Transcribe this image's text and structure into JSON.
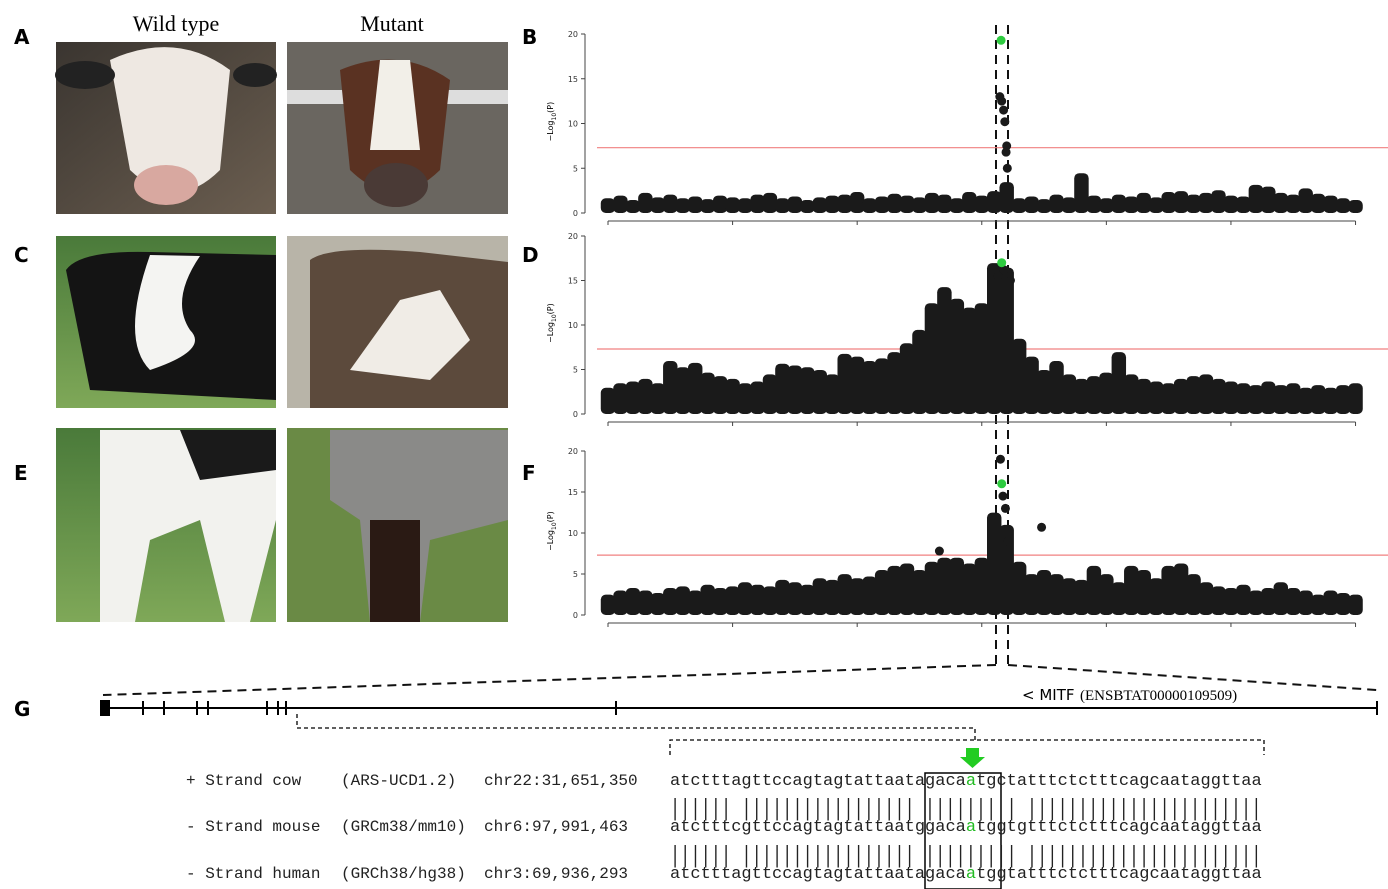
{
  "panel_labels": [
    "A",
    "B",
    "C",
    "D",
    "E",
    "F",
    "G"
  ],
  "photo_headers": [
    "Wild type",
    "Mutant"
  ],
  "chart_data": [
    {
      "type": "manhattan",
      "ylabel": "−Log",
      "ylabel_sub": "10",
      "ylabel_end": "(P)",
      "xlim": [
        0,
        61
      ],
      "xticks": [
        0,
        10,
        20,
        30,
        40,
        50,
        60
      ],
      "ylim": [
        0,
        20
      ],
      "yticks": [
        0,
        5,
        10,
        15,
        20
      ],
      "threshold": 7.3,
      "threshold_color": "#f08080",
      "color": "#1a1a1a",
      "lead_color": "#2ecc40",
      "x": [
        0,
        1,
        2,
        3,
        4,
        5,
        6,
        7,
        8,
        9,
        10,
        11,
        12,
        13,
        14,
        15,
        16,
        17,
        18,
        19,
        20,
        21,
        22,
        23,
        24,
        25,
        26,
        27,
        28,
        29,
        30,
        31,
        32,
        33,
        34,
        35,
        36,
        37,
        38,
        39,
        40,
        41,
        42,
        43,
        44,
        45,
        46,
        47,
        48,
        49,
        50,
        51,
        52,
        53,
        54,
        55,
        56,
        57,
        58,
        59,
        60
      ],
      "values": [
        1.2,
        1.5,
        1.0,
        1.8,
        1.3,
        1.6,
        1.2,
        1.4,
        1.1,
        1.5,
        1.3,
        1.2,
        1.6,
        1.8,
        1.2,
        1.4,
        1.0,
        1.3,
        1.5,
        1.6,
        1.9,
        1.2,
        1.4,
        1.7,
        1.5,
        1.3,
        1.8,
        1.6,
        1.2,
        1.9,
        1.5,
        2.0,
        3.0,
        1.2,
        1.4,
        1.1,
        1.6,
        1.3,
        4.0,
        1.5,
        1.2,
        1.6,
        1.4,
        1.8,
        1.3,
        1.9,
        2.0,
        1.6,
        1.8,
        2.1,
        1.5,
        1.4,
        2.7,
        2.5,
        1.8,
        1.6,
        2.3,
        1.7,
        1.5,
        1.2,
        1.0
      ],
      "peak_x": [
        31.45,
        31.6,
        31.75,
        31.85,
        32.0,
        32.05,
        31.95
      ],
      "peak_values": [
        13,
        12.5,
        11.5,
        10.2,
        7.5,
        5,
        6.8
      ],
      "lead": {
        "x": 31.55,
        "value": 19.3
      }
    },
    {
      "type": "manhattan",
      "ylabel": "−Log",
      "ylabel_sub": "10",
      "ylabel_end": "(P)",
      "xlim": [
        0,
        61
      ],
      "xticks": [
        0,
        10,
        20,
        30,
        40,
        50,
        60
      ],
      "ylim": [
        0,
        20
      ],
      "yticks": [
        0,
        5,
        10,
        15,
        20
      ],
      "threshold": 7.3,
      "threshold_color": "#f08080",
      "color": "#1a1a1a",
      "lead_color": "#2ecc40",
      "x": [
        0,
        1,
        2,
        3,
        4,
        5,
        6,
        7,
        8,
        9,
        10,
        11,
        12,
        13,
        14,
        15,
        16,
        17,
        18,
        19,
        20,
        21,
        22,
        23,
        24,
        25,
        26,
        27,
        28,
        29,
        30,
        31,
        32,
        33,
        34,
        35,
        36,
        37,
        38,
        39,
        40,
        41,
        42,
        43,
        44,
        45,
        46,
        47,
        48,
        49,
        50,
        51,
        52,
        53,
        54,
        55,
        56,
        57,
        58,
        59,
        60
      ],
      "values": [
        2.5,
        3.0,
        3.2,
        3.5,
        3.0,
        5.5,
        4.8,
        5.3,
        4.2,
        3.8,
        3.5,
        3.0,
        3.2,
        4.0,
        5.2,
        5.0,
        4.8,
        4.5,
        4.0,
        6.3,
        6.0,
        5.5,
        5.8,
        6.5,
        7.5,
        9.0,
        12.0,
        13.8,
        12.5,
        11.5,
        12.0,
        16.5,
        16.0,
        8.0,
        6.0,
        4.5,
        5.5,
        4.0,
        3.5,
        3.8,
        4.2,
        6.5,
        4.0,
        3.5,
        3.2,
        3.0,
        3.5,
        3.8,
        4.0,
        3.5,
        3.2,
        3.0,
        2.8,
        3.2,
        2.8,
        3.0,
        2.5,
        2.8,
        2.5,
        2.8,
        3.0
      ],
      "peak_x": [
        31.3,
        31.8,
        32.3
      ],
      "peak_values": [
        15.5,
        16.2,
        15.0
      ],
      "lead": {
        "x": 31.6,
        "value": 17
      }
    },
    {
      "type": "manhattan",
      "ylabel": "−Log",
      "ylabel_sub": "10",
      "ylabel_end": "(P)",
      "xlim": [
        0,
        61
      ],
      "xticks": [
        0,
        10,
        20,
        30,
        40,
        50,
        60
      ],
      "ylim": [
        0,
        20
      ],
      "yticks": [
        0,
        5,
        10,
        15,
        20
      ],
      "threshold": 7.3,
      "threshold_color": "#f08080",
      "color": "#1a1a1a",
      "lead_color": "#2ecc40",
      "x": [
        0,
        1,
        2,
        3,
        4,
        5,
        6,
        7,
        8,
        9,
        10,
        11,
        12,
        13,
        14,
        15,
        16,
        17,
        18,
        19,
        20,
        21,
        22,
        23,
        24,
        25,
        26,
        27,
        28,
        29,
        30,
        31,
        32,
        33,
        34,
        35,
        36,
        37,
        38,
        39,
        40,
        41,
        42,
        43,
        44,
        45,
        46,
        47,
        48,
        49,
        50,
        51,
        52,
        53,
        54,
        55,
        56,
        57,
        58,
        59,
        60
      ],
      "values": [
        2.0,
        2.5,
        2.8,
        2.5,
        2.2,
        2.8,
        3.0,
        2.5,
        3.2,
        2.8,
        3.0,
        3.5,
        3.2,
        3.0,
        3.8,
        3.5,
        3.2,
        4.0,
        3.8,
        4.5,
        4.0,
        4.2,
        5.0,
        5.5,
        5.8,
        5.0,
        6.0,
        6.5,
        6.5,
        5.8,
        6.5,
        12.0,
        10.5,
        6.0,
        4.5,
        5.0,
        4.5,
        4.0,
        3.8,
        5.5,
        4.5,
        3.5,
        5.5,
        5.0,
        4.0,
        5.5,
        5.8,
        4.5,
        3.5,
        3.0,
        2.8,
        3.2,
        2.5,
        2.8,
        3.5,
        2.8,
        2.5,
        2.0,
        2.5,
        2.2,
        2.0
      ],
      "peak_x": [
        31.5,
        31.7,
        31.9,
        32.1,
        34.8,
        26.6
      ],
      "peak_values": [
        19,
        14.5,
        13,
        9,
        10.7,
        7.8
      ],
      "lead": {
        "x": 31.6,
        "value": 16
      }
    }
  ],
  "gene": {
    "label": "< MITF",
    "id": "(ENSBTAT00000109509)"
  },
  "alignment": [
    {
      "strand": "+ Strand cow",
      "assembly": "(ARS-UCD1.2)",
      "position": "chr22:31,651,350",
      "sequence_parts": [
        "atctttagttccagtagtattaatagaca",
        "a",
        "tgctatttctctttcagcaataggttaa"
      ]
    },
    {
      "match": "|||||| ||||||||||||||||| ||||||| | |||||||||||||||||||||||"
    },
    {
      "strand": "- Strand mouse",
      "assembly": "(GRCm38/mm10)",
      "position": "chr6:97,991,463",
      "sequence_parts": [
        "atctttcgttccagtagtattaatggaca",
        "a",
        "tggtgtttctctttcagcaataggttaa"
      ]
    },
    {
      "match": "|||||| ||||||||||||||||| ||||||||| |||||||||||||||||||||||"
    },
    {
      "strand": "- Strand human",
      "assembly": "(GRCh38/hg38)",
      "position": "chr3:69,936,293",
      "sequence_parts": [
        "atctttagttccagtagtattaatagaca",
        "a",
        "tggtatttctctttcagcaataggttaa"
      ]
    }
  ]
}
